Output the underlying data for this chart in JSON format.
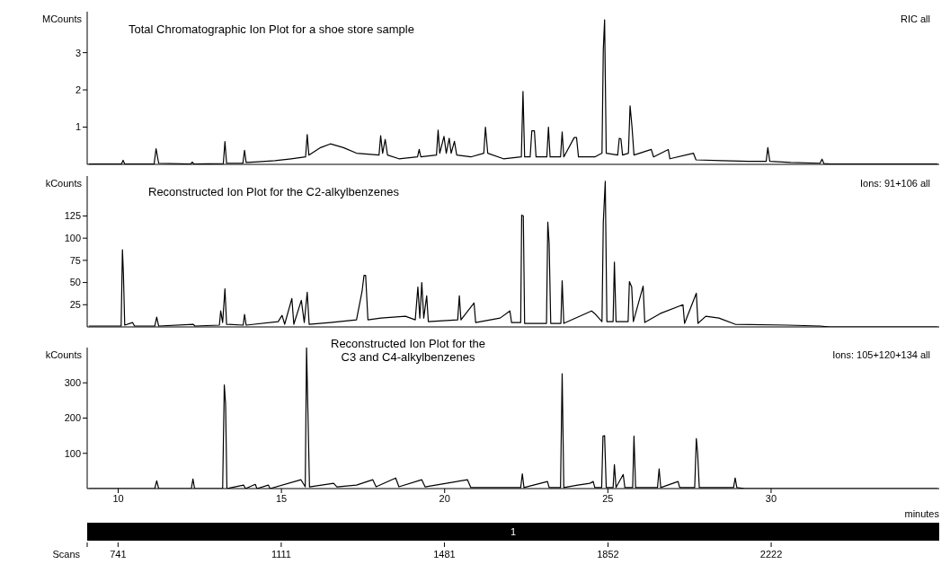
{
  "chart_data": [
    {
      "type": "line",
      "title": "Total Chromatographic Ion Plot for a shoe store sample",
      "annotations": [
        "RIC all"
      ],
      "ylabel": "MCounts",
      "color": "#000000",
      "marker": "none",
      "line_style": "solid",
      "tick_labels": "y",
      "xlim": [
        9.05,
        35.15
      ],
      "ylim": [
        0,
        4.1
      ],
      "yticks": [
        1,
        2,
        3
      ],
      "x": [
        9.1,
        10.1,
        10.15,
        10.2,
        11.1,
        11.16,
        11.24,
        12.22,
        12.27,
        12.32,
        13.22,
        13.27,
        13.32,
        13.82,
        13.87,
        13.92,
        14.3,
        14.8,
        15.3,
        15.74,
        15.79,
        15.84,
        16.2,
        16.5,
        16.9,
        17.3,
        17.99,
        18.04,
        18.1,
        18.18,
        18.25,
        18.6,
        19.17,
        19.22,
        19.27,
        19.75,
        19.8,
        19.85,
        19.98,
        20.05,
        20.14,
        20.2,
        20.3,
        20.37,
        20.8,
        21.2,
        21.25,
        21.32,
        21.8,
        22.35,
        22.4,
        22.45,
        22.62,
        22.67,
        22.75,
        22.8,
        23.13,
        23.18,
        23.23,
        23.55,
        23.6,
        23.65,
        23.97,
        24.04,
        24.1,
        24.6,
        24.82,
        24.86,
        24.9,
        24.95,
        25.3,
        25.35,
        25.4,
        25.45,
        25.63,
        25.68,
        25.74,
        25.8,
        26.33,
        26.4,
        26.85,
        26.9,
        27.62,
        27.7,
        28.5,
        29.3,
        29.85,
        29.9,
        29.96,
        30.6,
        31.5,
        31.56,
        31.62,
        31.8,
        35.1
      ],
      "values": [
        0.01,
        0.01,
        0.11,
        0.01,
        0.01,
        0.42,
        0.03,
        0.01,
        0.06,
        0.01,
        0.02,
        0.61,
        0.03,
        0.03,
        0.38,
        0.05,
        0.07,
        0.1,
        0.15,
        0.2,
        0.8,
        0.25,
        0.45,
        0.55,
        0.45,
        0.3,
        0.25,
        0.77,
        0.3,
        0.67,
        0.25,
        0.15,
        0.2,
        0.4,
        0.2,
        0.25,
        0.92,
        0.3,
        0.75,
        0.3,
        0.7,
        0.3,
        0.62,
        0.25,
        0.2,
        0.3,
        1.0,
        0.3,
        0.15,
        0.2,
        1.96,
        0.2,
        0.2,
        0.9,
        0.9,
        0.2,
        0.2,
        1.0,
        0.2,
        0.2,
        0.87,
        0.2,
        0.72,
        0.72,
        0.2,
        0.2,
        0.3,
        3.08,
        3.88,
        0.3,
        0.25,
        0.7,
        0.68,
        0.25,
        0.3,
        1.57,
        1.0,
        0.25,
        0.4,
        0.2,
        0.4,
        0.15,
        0.3,
        0.12,
        0.1,
        0.08,
        0.08,
        0.45,
        0.08,
        0.05,
        0.03,
        0.14,
        0.02,
        0.01,
        0.01
      ]
    },
    {
      "type": "line",
      "title": "Reconstructed Ion Plot for the C2-alkylbenzenes",
      "annotations": [
        "Ions: 91+106 all"
      ],
      "ylabel": "kCounts",
      "color": "#000000",
      "marker": "none",
      "line_style": "solid",
      "tick_labels": "y",
      "xlim": [
        9.05,
        35.15
      ],
      "ylim": [
        0,
        170
      ],
      "yticks": [
        25,
        50,
        75,
        100,
        125
      ],
      "x": [
        9.1,
        10.09,
        10.13,
        10.16,
        10.2,
        10.44,
        10.5,
        11.12,
        11.18,
        11.24,
        12.3,
        12.35,
        13.1,
        13.14,
        13.2,
        13.27,
        13.32,
        13.83,
        13.87,
        13.92,
        14.9,
        15.02,
        15.1,
        15.32,
        15.38,
        15.61,
        15.7,
        15.79,
        15.85,
        16.5,
        17.3,
        17.47,
        17.53,
        17.58,
        17.65,
        18.05,
        18.8,
        19.1,
        19.18,
        19.24,
        19.3,
        19.36,
        19.45,
        19.5,
        20.4,
        20.45,
        20.5,
        20.9,
        20.95,
        21.7,
        22.0,
        22.05,
        22.33,
        22.36,
        22.41,
        22.45,
        23.12,
        23.16,
        23.2,
        23.25,
        23.56,
        23.6,
        23.65,
        24.5,
        24.6,
        24.82,
        24.86,
        24.92,
        24.97,
        25.16,
        25.2,
        25.25,
        25.62,
        25.66,
        25.73,
        25.78,
        26.08,
        26.13,
        26.6,
        27.3,
        27.35,
        27.71,
        27.76,
        28.0,
        28.4,
        28.9,
        30.5,
        31.5,
        31.8,
        35.1
      ],
      "values": [
        1,
        1,
        87,
        60,
        2,
        5,
        1,
        1,
        11,
        1,
        3,
        1,
        2,
        18,
        5,
        43,
        3,
        2,
        14,
        2,
        6,
        13,
        3,
        32,
        3,
        30,
        5,
        39,
        3,
        5,
        8,
        40,
        58,
        58,
        8,
        10,
        12,
        8,
        45,
        10,
        50,
        10,
        35,
        6,
        8,
        35,
        8,
        27,
        5,
        10,
        18,
        5,
        5,
        126,
        125,
        4,
        4,
        118,
        95,
        4,
        4,
        52,
        4,
        18,
        15,
        6,
        118,
        164,
        6,
        6,
        73,
        6,
        6,
        51,
        45,
        6,
        46,
        5,
        15,
        25,
        4,
        38,
        4,
        12,
        10,
        3,
        2,
        1,
        0,
        0
      ]
    },
    {
      "type": "line",
      "title": "Reconstructed Ion Plot for the\nC3 and C4-alkylbenzenes",
      "annotations": [
        "Ions: 105+120+134 all",
        "1"
      ],
      "ylabel": "kCounts",
      "xlabel": "minutes",
      "x2label": "Scans",
      "color": "#000000",
      "marker": "none",
      "line_style": "solid",
      "xlim": [
        9.05,
        35.15
      ],
      "xticks": [
        10,
        15,
        20,
        25,
        30
      ],
      "x2lim": [
        671,
        2603
      ],
      "x2ticks": [
        741,
        1111,
        1481,
        1852,
        2222
      ],
      "ylim": [
        0,
        400
      ],
      "yticks": [
        100,
        200,
        300
      ],
      "x": [
        9.1,
        11.12,
        11.18,
        11.24,
        12.24,
        12.29,
        12.34,
        13.2,
        13.25,
        13.29,
        13.33,
        13.84,
        13.9,
        14.2,
        14.25,
        14.6,
        14.65,
        15.6,
        15.73,
        15.77,
        15.81,
        15.86,
        16.6,
        16.7,
        17.3,
        17.8,
        17.9,
        18.5,
        18.6,
        19.3,
        19.4,
        20.7,
        20.8,
        22.33,
        22.38,
        22.43,
        23.15,
        23.2,
        23.55,
        23.6,
        23.65,
        24.08,
        24.45,
        24.55,
        24.6,
        24.81,
        24.85,
        24.9,
        24.95,
        25.16,
        25.2,
        25.25,
        25.47,
        25.52,
        25.76,
        25.8,
        25.85,
        26.52,
        26.57,
        26.62,
        27.15,
        27.2,
        27.66,
        27.71,
        27.75,
        27.8,
        28.85,
        28.9,
        28.95,
        29.2,
        35.1
      ],
      "values": [
        0,
        0,
        22,
        0,
        0,
        27,
        0,
        0,
        294,
        240,
        0,
        10,
        0,
        12,
        0,
        10,
        0,
        25,
        5,
        400,
        225,
        5,
        15,
        5,
        10,
        25,
        5,
        30,
        5,
        25,
        5,
        25,
        3,
        3,
        42,
        3,
        20,
        3,
        3,
        326,
        3,
        10,
        15,
        20,
        3,
        3,
        149,
        150,
        3,
        3,
        68,
        3,
        40,
        3,
        3,
        149,
        3,
        3,
        56,
        3,
        20,
        3,
        3,
        142,
        100,
        3,
        3,
        30,
        3,
        0,
        0
      ]
    }
  ]
}
